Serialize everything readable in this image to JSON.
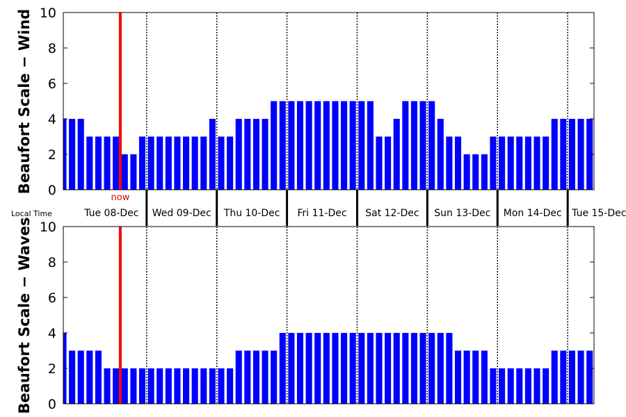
{
  "strip": {
    "local_time_label": "Local Time",
    "day_labels": [
      "Tue 08-Dec",
      "Wed 09-Dec",
      "Thu 10-Dec",
      "Fri 11-Dec",
      "Sat 12-Dec",
      "Sun 13-Dec",
      "Mon 14-Dec",
      "Tue 15-Dec"
    ]
  },
  "now": {
    "label": "now",
    "index": 6.5,
    "color": "#ff0000"
  },
  "colors": {
    "bars": "#0000ff",
    "now_line": "#ff0000",
    "axes": "#000000"
  },
  "chart_data": [
    {
      "type": "bar",
      "ylabel": "Beaufort Scale − Wind",
      "ylim": [
        0,
        10
      ],
      "yticks": [
        0,
        2,
        4,
        6,
        8,
        10
      ],
      "x_range": [
        0,
        60.5
      ],
      "day_boundaries": [
        9.5,
        17.5,
        25.5,
        33.5,
        41.5,
        49.5,
        57.5
      ],
      "grid": false,
      "values": [
        4,
        4,
        4,
        3,
        3,
        3,
        3,
        2,
        2,
        3,
        3,
        3,
        3,
        3,
        3,
        3,
        3,
        4,
        3,
        3,
        4,
        4,
        4,
        4,
        5,
        5,
        5,
        5,
        5,
        5,
        5,
        5,
        5,
        5,
        5,
        5,
        3,
        3,
        4,
        5,
        5,
        5,
        5,
        4,
        3,
        3,
        2,
        2,
        2,
        3,
        3,
        3,
        3,
        3,
        3,
        3,
        4,
        4,
        4,
        4,
        4
      ]
    },
    {
      "type": "bar",
      "ylabel": "Beaufort Scale − Waves",
      "ylim": [
        0,
        10
      ],
      "yticks": [
        0,
        2,
        4,
        6,
        8,
        10
      ],
      "x_range": [
        0,
        60.5
      ],
      "day_boundaries": [
        9.5,
        17.5,
        25.5,
        33.5,
        41.5,
        49.5,
        57.5
      ],
      "grid": false,
      "values": [
        4,
        3,
        3,
        3,
        3,
        2,
        2,
        2,
        2,
        2,
        2,
        2,
        2,
        2,
        2,
        2,
        2,
        2,
        2,
        2,
        3,
        3,
        3,
        3,
        3,
        4,
        4,
        4,
        4,
        4,
        4,
        4,
        4,
        4,
        4,
        4,
        4,
        4,
        4,
        4,
        4,
        4,
        4,
        4,
        4,
        3,
        3,
        3,
        3,
        2,
        2,
        2,
        2,
        2,
        2,
        2,
        3,
        3,
        3,
        3,
        3
      ]
    }
  ]
}
